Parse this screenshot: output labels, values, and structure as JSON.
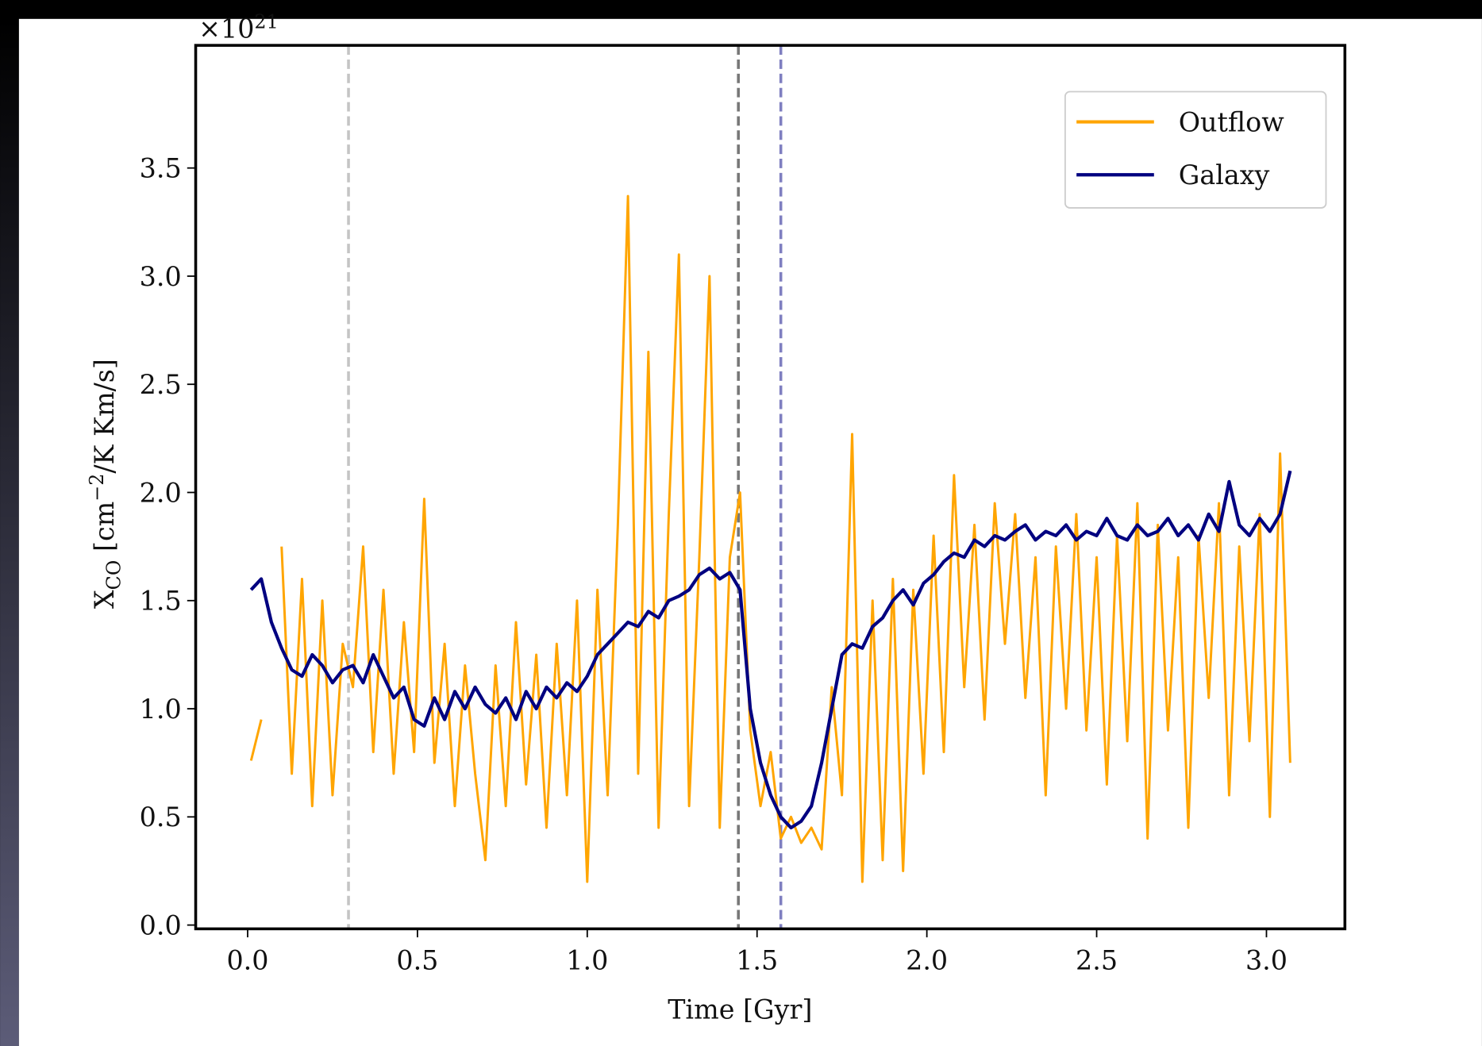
{
  "chart_data": {
    "type": "line",
    "xlabel": "Time [Gyr]",
    "ylabel": {
      "base": "X",
      "sub": "CO",
      "unit_open": " [cm",
      "sup": "−2",
      "unit_close": "/K Km/s]"
    },
    "y_offset": {
      "base": "×10",
      "exponent": "21"
    },
    "xlim": [
      -0.153,
      3.231
    ],
    "ylim": [
      -0.0175,
      4.067
    ],
    "xticks": [
      {
        "value": 0,
        "label": "0.0"
      },
      0.5,
      {
        "value": 1,
        "label": "1.0"
      },
      1.5,
      {
        "value": 2,
        "label": "2.0"
      },
      2.5,
      {
        "value": 3,
        "label": "3.0"
      }
    ],
    "yticks": [
      {
        "value": 0,
        "label": "0.0"
      },
      0.5,
      {
        "value": 1,
        "label": "1.0"
      },
      1.5,
      {
        "value": 2,
        "label": "2.0"
      },
      2.5,
      {
        "value": 3,
        "label": "3.0"
      },
      3.5
    ],
    "legend_loc": "upper right",
    "vlines": [
      {
        "x": 0.297,
        "color": "#c4c4c4"
      },
      {
        "x": 1.445,
        "color": "#777777"
      },
      {
        "x": 1.57,
        "color": "#7f7fc0"
      }
    ],
    "x": [
      0.01,
      0.04,
      0.07,
      0.1,
      0.13,
      0.16,
      0.19,
      0.22,
      0.25,
      0.28,
      0.31,
      0.34,
      0.37,
      0.4,
      0.43,
      0.46,
      0.49,
      0.52,
      0.55,
      0.58,
      0.61,
      0.64,
      0.67,
      0.7,
      0.73,
      0.76,
      0.79,
      0.82,
      0.85,
      0.88,
      0.91,
      0.94,
      0.97,
      1.0,
      1.03,
      1.06,
      1.09,
      1.12,
      1.15,
      1.18,
      1.21,
      1.24,
      1.27,
      1.3,
      1.33,
      1.36,
      1.39,
      1.42,
      1.45,
      1.48,
      1.51,
      1.54,
      1.57,
      1.6,
      1.63,
      1.66,
      1.69,
      1.72,
      1.75,
      1.78,
      1.81,
      1.84,
      1.87,
      1.9,
      1.93,
      1.96,
      1.99,
      2.02,
      2.05,
      2.08,
      2.11,
      2.14,
      2.17,
      2.2,
      2.23,
      2.26,
      2.29,
      2.32,
      2.35,
      2.38,
      2.41,
      2.44,
      2.47,
      2.5,
      2.53,
      2.56,
      2.59,
      2.62,
      2.65,
      2.68,
      2.71,
      2.74,
      2.77,
      2.8,
      2.83,
      2.86,
      2.89,
      2.92,
      2.95,
      2.98,
      3.01,
      3.04,
      3.07
    ],
    "series": [
      {
        "name": "Outflow",
        "color": "#ffa500",
        "values": [
          0.76,
          0.95,
          null,
          1.75,
          0.7,
          1.6,
          0.55,
          1.5,
          0.6,
          1.3,
          1.1,
          1.75,
          0.8,
          1.55,
          0.7,
          1.4,
          0.8,
          1.97,
          0.75,
          1.3,
          0.55,
          1.2,
          0.7,
          0.3,
          1.2,
          0.55,
          1.4,
          0.65,
          1.25,
          0.45,
          1.3,
          0.6,
          1.5,
          0.2,
          1.55,
          0.6,
          1.85,
          3.37,
          0.7,
          2.65,
          0.45,
          1.9,
          3.1,
          0.55,
          1.7,
          3.0,
          0.45,
          1.7,
          2.0,
          0.9,
          0.55,
          0.8,
          0.4,
          0.5,
          0.38,
          0.45,
          0.35,
          1.1,
          0.6,
          2.27,
          0.2,
          1.5,
          0.3,
          1.6,
          0.25,
          1.55,
          0.7,
          1.8,
          0.8,
          2.08,
          1.1,
          1.85,
          0.95,
          1.95,
          1.3,
          1.9,
          1.05,
          1.7,
          0.6,
          1.75,
          1.0,
          1.9,
          0.9,
          1.7,
          0.65,
          1.8,
          0.85,
          1.95,
          0.4,
          1.85,
          0.9,
          1.7,
          0.45,
          1.8,
          1.05,
          1.95,
          0.6,
          1.75,
          0.85,
          1.9,
          0.5,
          2.18,
          0.75
        ]
      },
      {
        "name": "Galaxy",
        "color": "#000080",
        "values": [
          1.55,
          1.6,
          1.4,
          1.28,
          1.18,
          1.15,
          1.25,
          1.2,
          1.12,
          1.18,
          1.2,
          1.12,
          1.25,
          1.15,
          1.05,
          1.1,
          0.95,
          0.92,
          1.05,
          0.95,
          1.08,
          1.0,
          1.1,
          1.02,
          0.98,
          1.05,
          0.95,
          1.08,
          1.0,
          1.1,
          1.05,
          1.12,
          1.08,
          1.15,
          1.25,
          1.3,
          1.35,
          1.4,
          1.38,
          1.45,
          1.42,
          1.5,
          1.52,
          1.55,
          1.62,
          1.65,
          1.6,
          1.63,
          1.55,
          1.0,
          0.75,
          0.6,
          0.5,
          0.45,
          0.48,
          0.55,
          0.75,
          1.0,
          1.25,
          1.3,
          1.28,
          1.38,
          1.42,
          1.5,
          1.55,
          1.48,
          1.58,
          1.62,
          1.68,
          1.72,
          1.7,
          1.78,
          1.75,
          1.8,
          1.78,
          1.82,
          1.85,
          1.78,
          1.82,
          1.8,
          1.85,
          1.78,
          1.82,
          1.8,
          1.88,
          1.8,
          1.78,
          1.85,
          1.8,
          1.82,
          1.88,
          1.8,
          1.85,
          1.78,
          1.9,
          1.82,
          2.05,
          1.85,
          1.8,
          1.88,
          1.82,
          1.9,
          2.1
        ]
      }
    ]
  }
}
